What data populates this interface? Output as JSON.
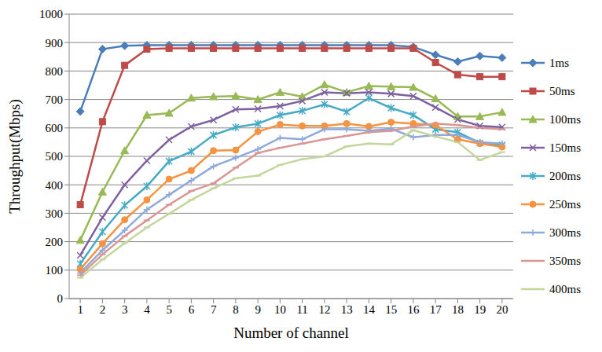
{
  "chart_data": {
    "type": "line",
    "x_label": "Number of channel",
    "y_label": "Throughput(Mbps)",
    "x": [
      1,
      2,
      3,
      4,
      5,
      6,
      7,
      8,
      9,
      10,
      11,
      12,
      13,
      14,
      15,
      16,
      17,
      18,
      19,
      20
    ],
    "xlim": [
      0.5,
      20.5
    ],
    "xticks": [
      1,
      2,
      3,
      4,
      5,
      6,
      7,
      8,
      9,
      10,
      11,
      12,
      13,
      14,
      15,
      16,
      17,
      18,
      19,
      20
    ],
    "ylim": [
      0,
      1000
    ],
    "yticks": [
      0,
      100,
      200,
      300,
      400,
      500,
      600,
      700,
      800,
      900,
      1000
    ],
    "grid": true,
    "legend": "right",
    "series": [
      {
        "name": "1ms",
        "color": "#4a7ebb",
        "marker": "diamond",
        "values": [
          658,
          877,
          889,
          891,
          891,
          891,
          891,
          891,
          891,
          891,
          891,
          891,
          891,
          891,
          891,
          885,
          857,
          833,
          853,
          847
        ]
      },
      {
        "name": "50ms",
        "color": "#be4b48",
        "marker": "square",
        "values": [
          330,
          622,
          820,
          877,
          880,
          880,
          880,
          880,
          880,
          880,
          880,
          880,
          880,
          880,
          880,
          880,
          830,
          787,
          780,
          780
        ]
      },
      {
        "name": "100ms",
        "color": "#98b954",
        "marker": "triangle",
        "values": [
          205,
          375,
          520,
          645,
          652,
          705,
          710,
          712,
          700,
          725,
          710,
          752,
          725,
          747,
          745,
          743,
          703,
          640,
          640,
          655
        ]
      },
      {
        "name": "150ms",
        "color": "#7d60a0",
        "marker": "x",
        "values": [
          152,
          285,
          400,
          485,
          558,
          605,
          628,
          665,
          667,
          677,
          695,
          725,
          722,
          725,
          720,
          712,
          672,
          630,
          607,
          603
        ]
      },
      {
        "name": "200ms",
        "color": "#46aac5",
        "marker": "star",
        "values": [
          122,
          235,
          328,
          395,
          483,
          517,
          575,
          602,
          615,
          645,
          660,
          683,
          657,
          705,
          670,
          645,
          595,
          585,
          547,
          540
        ]
      },
      {
        "name": "250ms",
        "color": "#f69240",
        "marker": "circle",
        "values": [
          103,
          193,
          277,
          347,
          420,
          450,
          520,
          522,
          587,
          612,
          607,
          607,
          615,
          605,
          620,
          615,
          610,
          560,
          545,
          533
        ]
      },
      {
        "name": "300ms",
        "color": "#8ea9db",
        "marker": "plus",
        "values": [
          90,
          170,
          240,
          313,
          365,
          415,
          465,
          495,
          525,
          565,
          560,
          595,
          595,
          590,
          597,
          567,
          575,
          575,
          550,
          545
        ]
      },
      {
        "name": "350ms",
        "color": "#d99694",
        "marker": "dash",
        "values": [
          82,
          155,
          220,
          275,
          330,
          378,
          405,
          460,
          512,
          530,
          545,
          560,
          572,
          585,
          590,
          605,
          615,
          610,
          600,
          595
        ]
      },
      {
        "name": "400ms",
        "color": "#c3d69b",
        "marker": "dash",
        "values": [
          73,
          137,
          195,
          250,
          298,
          347,
          388,
          423,
          432,
          470,
          490,
          500,
          535,
          545,
          542,
          592,
          570,
          550,
          487,
          515
        ]
      }
    ]
  }
}
